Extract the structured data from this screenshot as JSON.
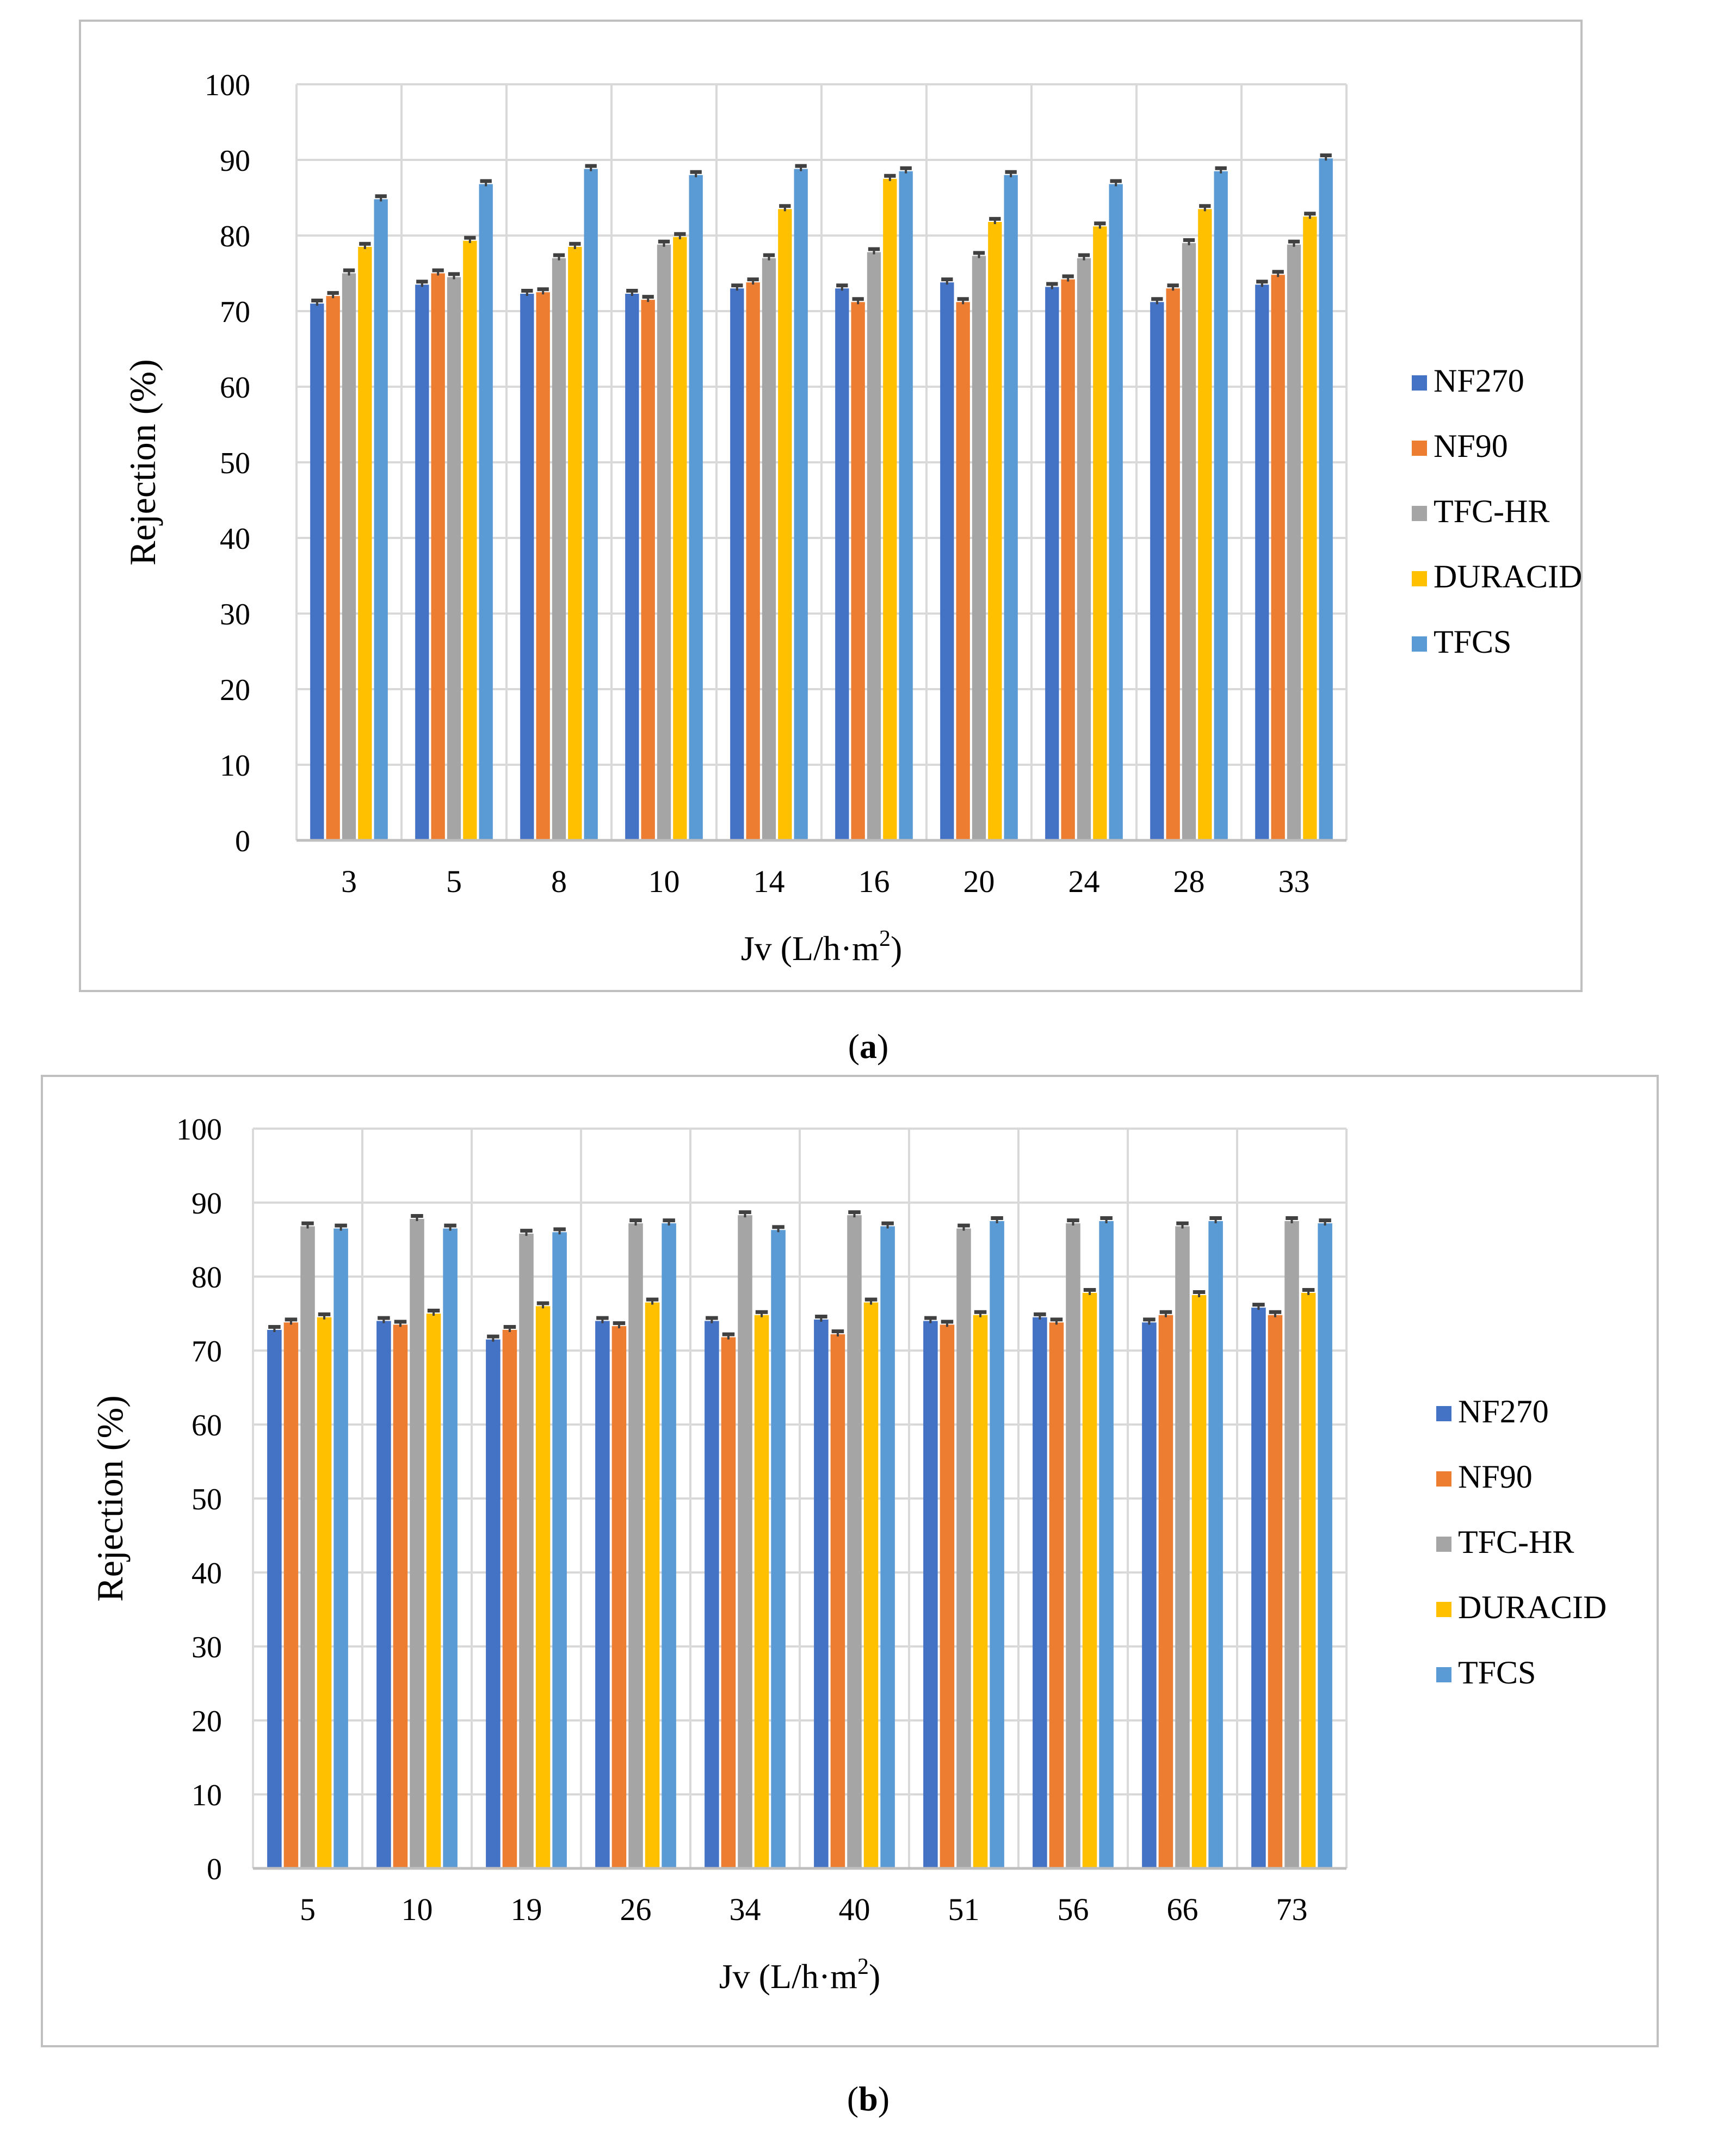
{
  "colors": {
    "NF270": "#4472C4",
    "NF90": "#ED7D31",
    "TFC-HR": "#A5A5A5",
    "DURACID": "#FFC000",
    "TFCS": "#5B9BD5",
    "grid": "#d9d9d9",
    "frame": "#bfbfbf",
    "errorbar": "#404040"
  },
  "chart_data": [
    {
      "type": "bar",
      "panel_label": "a",
      "ylabel": "Rejection (%)",
      "xlabel_main": "Jv (L/h·m",
      "xlabel_sup": "2",
      "xlabel_close": ")",
      "ylim": [
        0,
        100
      ],
      "yticks": [
        0,
        10,
        20,
        30,
        40,
        50,
        60,
        70,
        80,
        90,
        100
      ],
      "grid": true,
      "legend_position": "right",
      "categories": [
        "3",
        "5",
        "8",
        "10",
        "14",
        "16",
        "20",
        "24",
        "28",
        "33"
      ],
      "series": [
        {
          "name": "NF270",
          "values": [
            71,
            73.5,
            72.3,
            72.3,
            73,
            73,
            73.8,
            73.2,
            71.2,
            73.5
          ]
        },
        {
          "name": "NF90",
          "values": [
            72,
            75,
            72.5,
            71.5,
            73.8,
            71.2,
            71.2,
            74.2,
            73,
            74.8
          ]
        },
        {
          "name": "TFC-HR",
          "values": [
            75,
            74.5,
            77,
            78.8,
            77,
            77.8,
            77.3,
            77,
            79,
            78.8
          ]
        },
        {
          "name": "DURACID",
          "values": [
            78.5,
            79.3,
            78.5,
            79.8,
            83.5,
            87.5,
            81.8,
            81.2,
            83.5,
            82.5
          ]
        },
        {
          "name": "TFCS",
          "values": [
            84.8,
            86.8,
            88.8,
            88,
            88.8,
            88.5,
            88,
            86.8,
            88.5,
            90.2
          ]
        }
      ]
    },
    {
      "type": "bar",
      "panel_label": "b",
      "ylabel": "Rejection (%)",
      "xlabel_main": "Jv (L/h·m",
      "xlabel_sup": "2",
      "xlabel_close": ")",
      "ylim": [
        0,
        100
      ],
      "yticks": [
        0,
        10,
        20,
        30,
        40,
        50,
        60,
        70,
        80,
        90,
        100
      ],
      "grid": true,
      "legend_position": "right",
      "categories": [
        "5",
        "10",
        "19",
        "26",
        "34",
        "40",
        "51",
        "56",
        "66",
        "73"
      ],
      "series": [
        {
          "name": "NF270",
          "values": [
            72.8,
            74,
            71.5,
            74,
            74,
            74.2,
            74,
            74.5,
            73.8,
            75.8
          ]
        },
        {
          "name": "NF90",
          "values": [
            73.8,
            73.5,
            72.8,
            73.3,
            71.8,
            72.2,
            73.5,
            73.8,
            74.8,
            74.8
          ]
        },
        {
          "name": "TFC-HR",
          "values": [
            86.8,
            87.8,
            85.8,
            87.2,
            88.3,
            88.3,
            86.5,
            87.2,
            86.8,
            87.5
          ]
        },
        {
          "name": "DURACID",
          "values": [
            74.5,
            75,
            76,
            76.5,
            74.8,
            76.5,
            74.8,
            77.8,
            77.5,
            77.8
          ]
        },
        {
          "name": "TFCS",
          "values": [
            86.5,
            86.5,
            86,
            87.2,
            86.3,
            86.8,
            87.5,
            87.5,
            87.5,
            87.2
          ]
        }
      ]
    }
  ]
}
